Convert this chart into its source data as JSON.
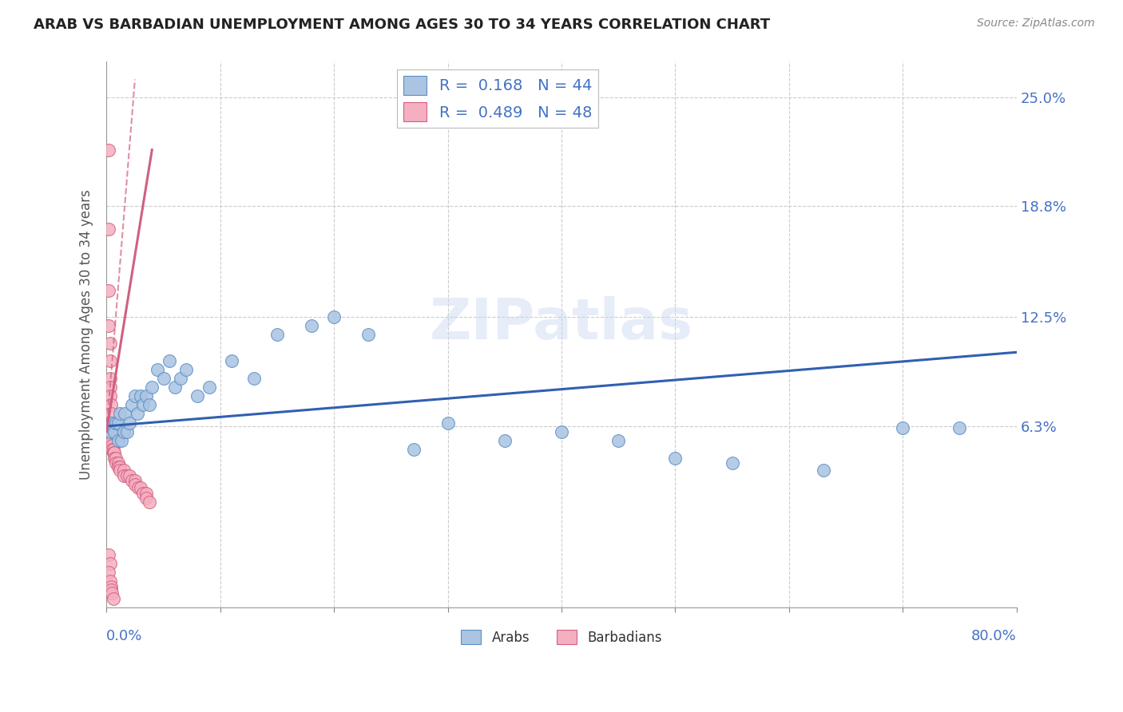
{
  "title": "ARAB VS BARBADIAN UNEMPLOYMENT AMONG AGES 30 TO 34 YEARS CORRELATION CHART",
  "source": "Source: ZipAtlas.com",
  "ylabel": "Unemployment Among Ages 30 to 34 years",
  "ytick_labels": [
    "6.3%",
    "12.5%",
    "18.8%",
    "25.0%"
  ],
  "ytick_values": [
    0.063,
    0.125,
    0.188,
    0.25
  ],
  "xlim": [
    0.0,
    0.8
  ],
  "ylim": [
    -0.04,
    0.27
  ],
  "arab_R": 0.168,
  "arab_N": 44,
  "barbadian_R": 0.489,
  "barbadian_N": 48,
  "arab_color": "#aac4e2",
  "barbadian_color": "#f4afc0",
  "arab_edge_color": "#5b8ec4",
  "barbadian_edge_color": "#d46080",
  "arab_line_color": "#3060b0",
  "barbadian_line_color": "#d06080",
  "legend_text_color": "#4472c4",
  "watermark_text": "ZIPatlas",
  "arab_x": [
    0.003,
    0.005,
    0.007,
    0.008,
    0.01,
    0.01,
    0.012,
    0.013,
    0.015,
    0.016,
    0.018,
    0.02,
    0.022,
    0.025,
    0.027,
    0.03,
    0.032,
    0.035,
    0.038,
    0.04,
    0.045,
    0.05,
    0.055,
    0.06,
    0.065,
    0.07,
    0.08,
    0.09,
    0.11,
    0.13,
    0.15,
    0.18,
    0.2,
    0.23,
    0.27,
    0.3,
    0.35,
    0.4,
    0.45,
    0.5,
    0.55,
    0.63,
    0.7,
    0.75
  ],
  "arab_y": [
    0.06,
    0.065,
    0.06,
    0.065,
    0.065,
    0.055,
    0.07,
    0.055,
    0.06,
    0.07,
    0.06,
    0.065,
    0.075,
    0.08,
    0.07,
    0.08,
    0.075,
    0.08,
    0.075,
    0.085,
    0.095,
    0.09,
    0.1,
    0.085,
    0.09,
    0.095,
    0.08,
    0.085,
    0.1,
    0.09,
    0.115,
    0.12,
    0.125,
    0.115,
    0.05,
    0.065,
    0.055,
    0.06,
    0.055,
    0.045,
    0.042,
    0.038,
    0.062,
    0.062
  ],
  "barbadian_x": [
    0.002,
    0.002,
    0.002,
    0.002,
    0.003,
    0.003,
    0.003,
    0.003,
    0.003,
    0.004,
    0.004,
    0.004,
    0.004,
    0.005,
    0.005,
    0.005,
    0.005,
    0.006,
    0.006,
    0.007,
    0.007,
    0.008,
    0.008,
    0.01,
    0.01,
    0.012,
    0.012,
    0.015,
    0.015,
    0.018,
    0.02,
    0.022,
    0.025,
    0.025,
    0.028,
    0.03,
    0.032,
    0.035,
    0.035,
    0.038,
    0.002,
    0.003,
    0.002,
    0.003,
    0.004,
    0.004,
    0.005,
    0.006
  ],
  "barbadian_y": [
    0.22,
    0.175,
    0.14,
    0.12,
    0.11,
    0.1,
    0.09,
    0.085,
    0.08,
    0.075,
    0.07,
    0.065,
    0.06,
    0.058,
    0.055,
    0.052,
    0.05,
    0.05,
    0.048,
    0.048,
    0.045,
    0.045,
    0.042,
    0.042,
    0.04,
    0.04,
    0.038,
    0.038,
    0.035,
    0.035,
    0.035,
    0.032,
    0.032,
    0.03,
    0.028,
    0.028,
    0.025,
    0.025,
    0.022,
    0.02,
    -0.01,
    -0.015,
    -0.02,
    -0.025,
    -0.028,
    -0.03,
    -0.032,
    -0.035
  ],
  "arab_trend_x": [
    0.0,
    0.8
  ],
  "arab_trend_y": [
    0.063,
    0.105
  ],
  "barb_trend_x": [
    0.0,
    0.04
  ],
  "barb_trend_y": [
    0.06,
    0.22
  ]
}
